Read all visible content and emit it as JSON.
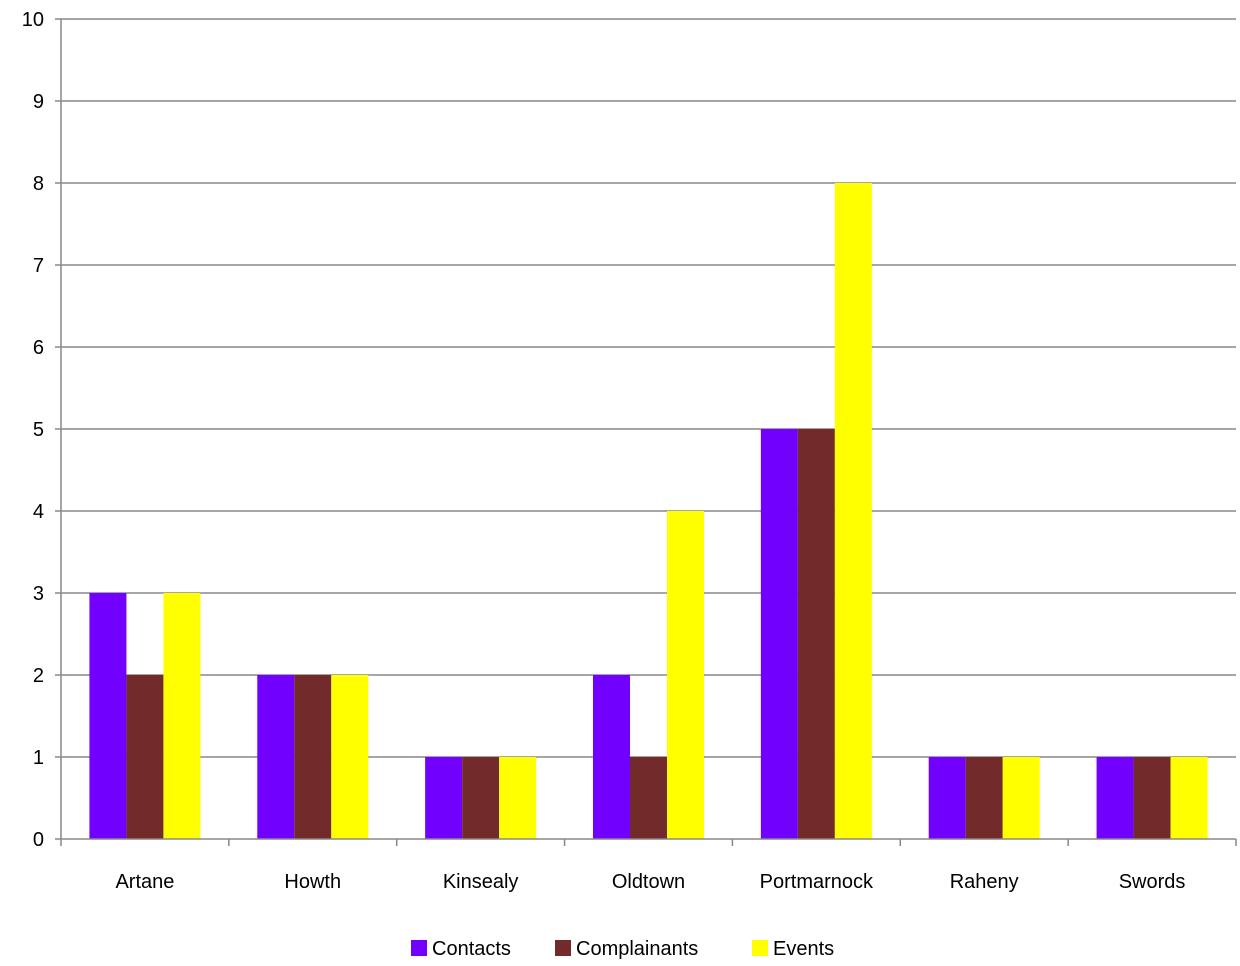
{
  "chart_data": {
    "type": "bar",
    "title": "",
    "xlabel": "",
    "ylabel": "",
    "categories": [
      "Artane",
      "Howth",
      "Kinsealy",
      "Oldtown",
      "Portmarnock",
      "Raheny",
      "Swords"
    ],
    "series": [
      {
        "name": "Contacts",
        "color": "#7200ff",
        "values": [
          3,
          2,
          1,
          2,
          5,
          1,
          1
        ]
      },
      {
        "name": "Complainants",
        "color": "#722a2a",
        "values": [
          2,
          2,
          1,
          1,
          5,
          1,
          1
        ]
      },
      {
        "name": "Events",
        "color": "#ffff00",
        "values": [
          3,
          2,
          1,
          4,
          8,
          1,
          1
        ]
      }
    ],
    "ylim": [
      0,
      10
    ],
    "yticks": [
      "0",
      "1",
      "2",
      "3",
      "4",
      "5",
      "6",
      "7",
      "8",
      "9",
      "10"
    ],
    "grid": true,
    "gridline_color": "#888888",
    "legend_position": "bottom"
  }
}
